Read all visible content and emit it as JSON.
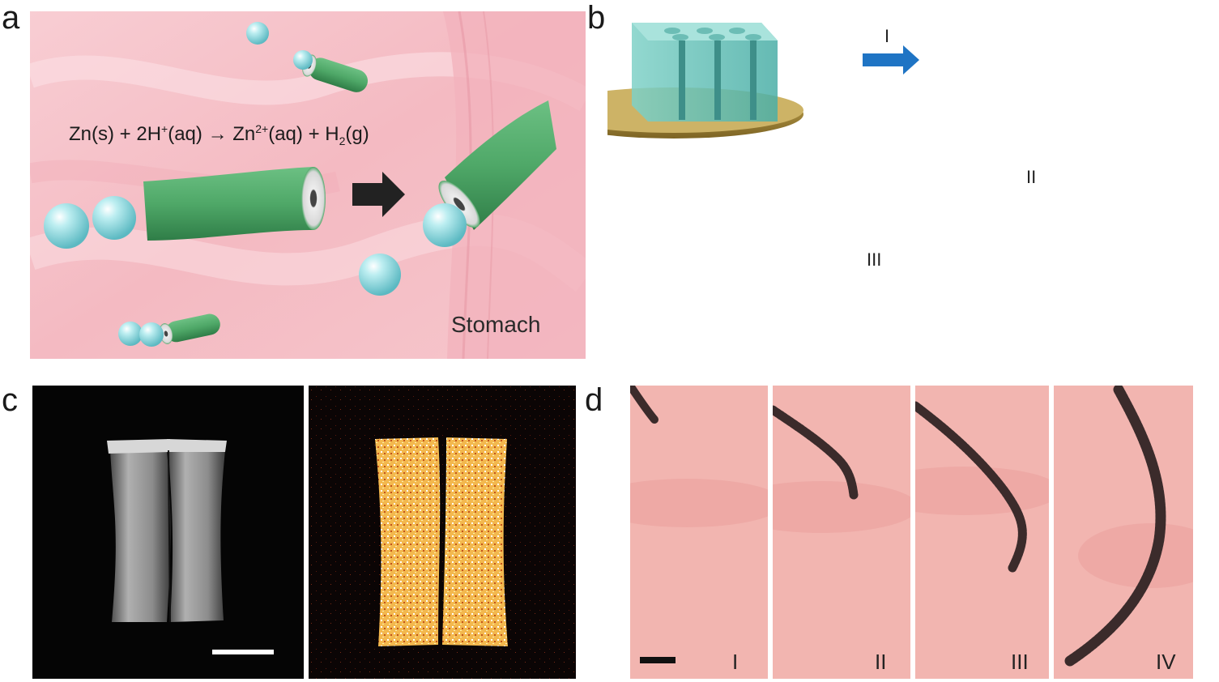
{
  "panels": {
    "a": {
      "letter": "a",
      "equation": {
        "part1": "Zn(s) + 2H",
        "sup1": "+",
        "part2": "(aq) → Zn",
        "sup2": "2+",
        "part3": "(aq) + H",
        "sub1": "2",
        "part4": "(g)"
      },
      "location_label": "Stomach",
      "colors": {
        "background": "#f6c6cc",
        "tube": "#4fa868",
        "bubble": "#8fd6dc",
        "arrow": "#222222"
      }
    },
    "b": {
      "letter": "b",
      "step_labels": [
        "I",
        "II",
        "III"
      ],
      "colors": {
        "arrow": "#1f74c4",
        "template": "#6cc7c0",
        "base": "#b89a3e",
        "tube": "#56b976"
      }
    },
    "c": {
      "letter": "c",
      "colors": {
        "sem_bg": "#050505",
        "map_bg": "#0b0505",
        "map_signal": "#f5c060"
      }
    },
    "d": {
      "letter": "d",
      "frame_labels": [
        "I",
        "II",
        "III",
        "IV"
      ],
      "colors": {
        "tissue": "#f2b5b0",
        "trail": "#3b2b2b"
      }
    }
  }
}
